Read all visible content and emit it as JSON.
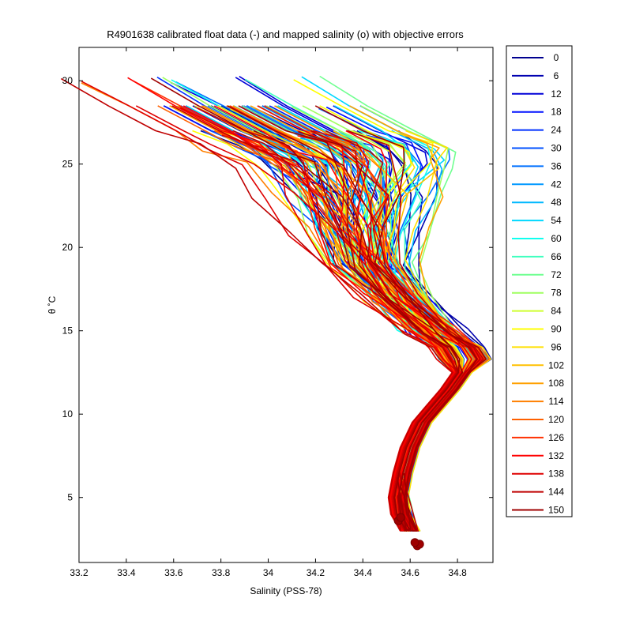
{
  "chart_data": {
    "type": "line",
    "title": "R4901638 calibrated float data (-) and mapped salinity (o) with objective errors",
    "xlabel": "Salinity (PSS-78)",
    "ylabel": "θ ˚C",
    "xlim": [
      33.2,
      34.95
    ],
    "ylim": [
      1.1,
      32
    ],
    "xticks": [
      "33.2",
      "33.4",
      "33.6",
      "33.8",
      "34",
      "34.2",
      "34.4",
      "34.6",
      "34.8"
    ],
    "yticks": [
      "5",
      "10",
      "15",
      "20",
      "25",
      "30"
    ],
    "legend_position": "outside-right",
    "colormap": "jet",
    "legend_entries": [
      "0",
      "6",
      "12",
      "18",
      "24",
      "30",
      "36",
      "42",
      "48",
      "54",
      "60",
      "66",
      "72",
      "78",
      "84",
      "90",
      "96",
      "102",
      "108",
      "114",
      "120",
      "126",
      "132",
      "138",
      "144",
      "150"
    ],
    "legend_colors": [
      "#00008f",
      "#0000b0",
      "#0000d8",
      "#0010ff",
      "#0030ff",
      "#0050ff",
      "#0070ff",
      "#0098ff",
      "#00b8ff",
      "#00d8ff",
      "#10ffef",
      "#40ffbf",
      "#6fff90",
      "#9fff60",
      "#cfff30",
      "#ffff00",
      "#ffe000",
      "#ffc000",
      "#ffa000",
      "#ff8000",
      "#ff6000",
      "#ff3000",
      "#ff0000",
      "#df0000",
      "#bf0000",
      "#9f0000"
    ],
    "profile_shape": {
      "theta": [
        30,
        28.5,
        27,
        26,
        25,
        23,
        21,
        19,
        17,
        15,
        14,
        13.3,
        12.5,
        11.5,
        10.5,
        9.5,
        8,
        6.5,
        5,
        4,
        3
      ],
      "salinity": [
        33.75,
        33.95,
        34.15,
        34.3,
        34.38,
        34.41,
        34.42,
        34.45,
        34.55,
        34.7,
        34.8,
        34.83,
        34.82,
        34.77,
        34.71,
        34.65,
        34.6,
        34.57,
        34.55,
        34.56,
        34.6
      ]
    },
    "mapped_points": {
      "theta": [
        2.1,
        2.2,
        2.3,
        3.6,
        3.8
      ],
      "salinity": [
        34.63,
        34.64,
        34.62,
        34.55,
        34.56
      ]
    }
  }
}
